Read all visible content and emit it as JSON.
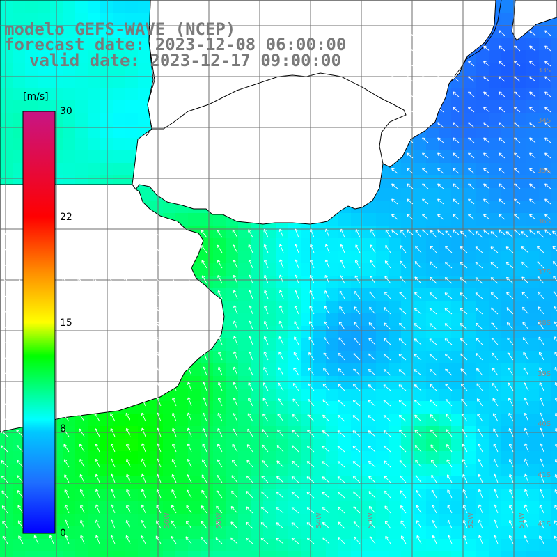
{
  "title": {
    "line1": "modelo GEFS-WAVE (NCEP)",
    "line2": "forecast date: 2023-12-08 06:00:00",
    "line3": "valid date: 2023-12-17 09:00:00"
  },
  "colorbar": {
    "unit": "[m/s]",
    "min": 0,
    "max": 30,
    "ticks": [
      "30",
      "22",
      "15",
      "8",
      "0"
    ],
    "colors": [
      "#0000ff",
      "#1e90ff",
      "#00ffff",
      "#00ff00",
      "#ffff00",
      "#ff8c00",
      "#ff0000",
      "#c71585"
    ]
  },
  "map": {
    "land_color": "#ffffff",
    "grid_color": "#6e6e6e",
    "vector_color": "#ffffff",
    "lat_labels": [
      "33S",
      "34S",
      "35S",
      "36S",
      "37S",
      "38S",
      "39S",
      "40S",
      "41S"
    ],
    "lon_labels": [
      "56W",
      "55W",
      "54W",
      "53W",
      "52W",
      "51W"
    ],
    "corner_label": "41S"
  }
}
